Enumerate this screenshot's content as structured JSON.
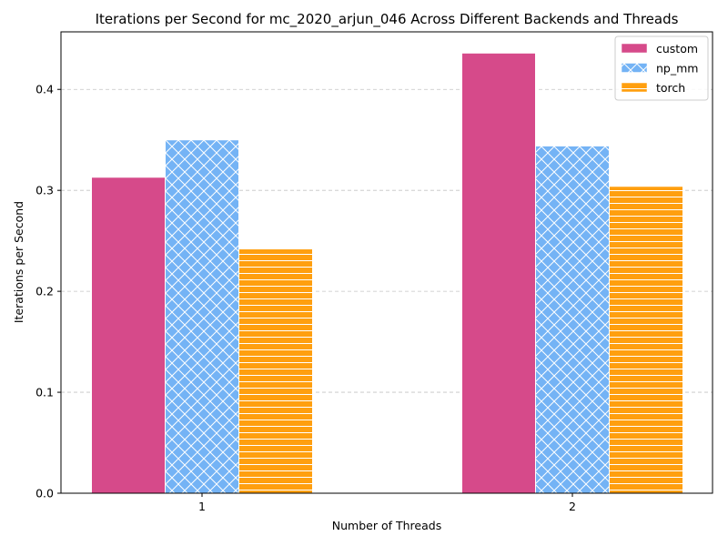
{
  "chart_data": {
    "type": "bar",
    "title": "Iterations per Second for mc_2020_arjun_046 Across Different Backends and Threads",
    "xlabel": "Number of Threads",
    "ylabel": "Iterations per Second",
    "categories": [
      "1",
      "2"
    ],
    "series": [
      {
        "name": "custom",
        "values": [
          0.313,
          0.436
        ],
        "color": "#d64a8a",
        "pattern": "solid"
      },
      {
        "name": "np_mm",
        "values": [
          0.35,
          0.344
        ],
        "color": "#74b3f5",
        "pattern": "cross-hatch"
      },
      {
        "name": "torch",
        "values": [
          0.242,
          0.304
        ],
        "color": "#ff9f0f",
        "pattern": "horizontal-lines"
      }
    ],
    "ylim": [
      0,
      0.457
    ],
    "yticks": [
      0.0,
      0.1,
      0.2,
      0.3,
      0.4
    ],
    "ytick_labels": [
      "0.0",
      "0.1",
      "0.2",
      "0.3",
      "0.4"
    ],
    "grid": "horizontal dashed",
    "legend_position": "top-right"
  }
}
